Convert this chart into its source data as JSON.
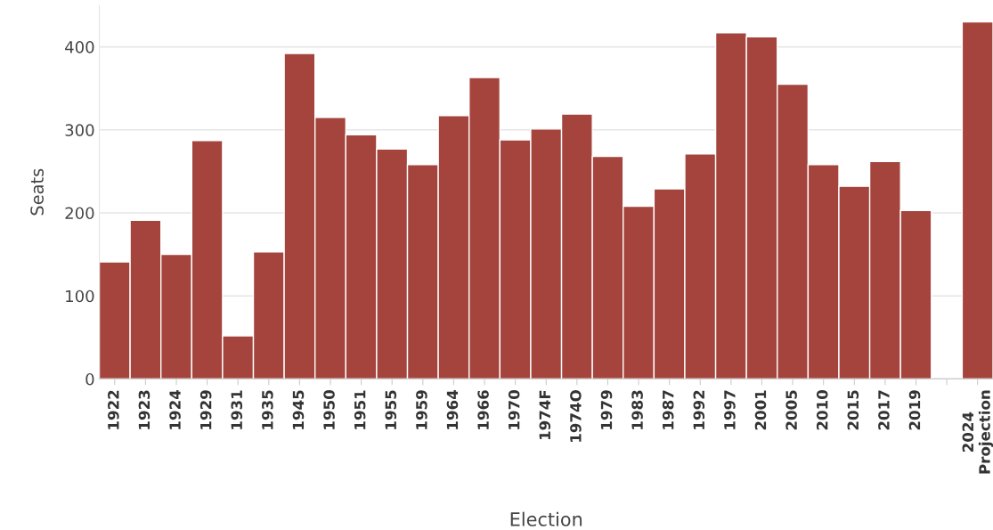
{
  "chart_data": {
    "type": "bar",
    "xlabel": "Election",
    "ylabel": "Seats",
    "categories": [
      "1922",
      "1923",
      "1924",
      "1929",
      "1931",
      "1935",
      "1945",
      "1950",
      "1951",
      "1955",
      "1959",
      "1964",
      "1966",
      "1970",
      "1974F",
      "1974O",
      "1979",
      "1983",
      "1987",
      "1992",
      "1997",
      "2001",
      "2005",
      "2010",
      "2015",
      "2017",
      "2019",
      null,
      "2024\nProjection"
    ],
    "values": [
      141,
      191,
      150,
      287,
      52,
      153,
      392,
      315,
      294,
      277,
      258,
      317,
      363,
      288,
      301,
      319,
      268,
      208,
      229,
      271,
      417,
      412,
      355,
      258,
      232,
      262,
      203,
      null,
      430
    ],
    "color": "#a5443d",
    "ylim": [
      0,
      450
    ],
    "yticks": [
      0,
      100,
      200,
      300,
      400
    ],
    "grid": "y",
    "legend": false
  }
}
